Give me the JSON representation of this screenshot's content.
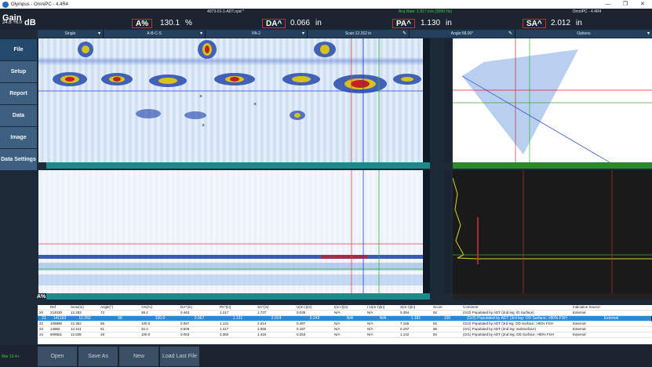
{
  "window": {
    "title": "Olympus - OmniPC - 4.4R4",
    "controls": [
      "—",
      "❐",
      "✕"
    ]
  },
  "header": {
    "file": "4073-01-1-ADT.opd *",
    "acq": "Acq Rate: 1.817 in/s (2000 Hz)",
    "version": "OmniPC - 4.4R4",
    "gain": {
      "label": "Gain",
      "value": "24.6 +6.0",
      "unit": "dB"
    },
    "readouts": [
      {
        "key": "A%",
        "value": "130.1",
        "unit": "%"
      },
      {
        "key": "DA^",
        "value": "0.066",
        "unit": "in"
      },
      {
        "key": "PA^",
        "value": "1.130",
        "unit": "in"
      },
      {
        "key": "SA^",
        "value": "2.012",
        "unit": "in"
      }
    ]
  },
  "selectors": [
    {
      "label": "Single"
    },
    {
      "label": "A-B-C-S"
    },
    {
      "label": "PA-2"
    },
    {
      "label": "Scan:12.262 in"
    },
    {
      "label": "Angle:58.00°"
    },
    {
      "label": "Options"
    }
  ],
  "sidebar": [
    "File",
    "Setup",
    "Report",
    "Data",
    "Image",
    "Data Settings"
  ],
  "views": {
    "bscan": "B-scan view",
    "cscan": "C-scan view",
    "sscan": "Sector scan",
    "ascan": "A-scan"
  },
  "table": {
    "columns": [
      "",
      "Ref",
      "Scan(in)",
      "Angle(°)",
      "A%(%)",
      "DA^(in)",
      "PA^(in)",
      "SA^(in)",
      "U(m-r)(in)",
      "I(m-r)(in)",
      "I-U(m-r)(in)",
      "S(m-r)(in)",
      "Score",
      "Comment",
      "Indication Source"
    ],
    "rows": [
      [
        "20",
        "214030",
        "12.283",
        "72",
        "39.2",
        "0.463",
        "1.217",
        "1.737",
        "0.035",
        "N/A",
        "N/A",
        "0.394",
        "82",
        "(Gr2) Populated by ADT (2nd leg: ID Surface)",
        "External"
      ],
      [
        "21",
        "141163",
        "12.262",
        "58",
        "100.0",
        "0.067",
        "1.131",
        "2.014",
        "0.243",
        "N/A",
        "N/A",
        "1.181",
        "100",
        "(Gr3) Populated by ADT (3rd leg: OD Surface; >80% FSH",
        "External"
      ],
      [
        "22",
        "109890",
        "12.362",
        "56",
        "100.0",
        "0.067",
        "1.131",
        "2.014",
        "0.497",
        "N/A",
        "N/A",
        "7.165",
        "82",
        "(Gr2) Populated by ADT (3rd leg: OD Surface; >80% FSH",
        "External"
      ],
      [
        "23",
        "14982",
        "12.441",
        "61",
        "32.2",
        "0.609",
        "1.317",
        "2.055",
        "0.197",
        "N/A",
        "N/A",
        "0.197",
        "96",
        "(Gr1) Populated by ADT (2nd leg: SubSurface)",
        "External"
      ],
      [
        "24",
        "609551",
        "12.835",
        "48",
        "100.0",
        "0.053",
        "0.360",
        "1.415",
        "0.253",
        "N/A",
        "N/A",
        "1.142",
        "82",
        "(Gr1) Populated by ADT (2nd leg: OD Surface; >80% FSH",
        "External"
      ]
    ],
    "selected_row": 1
  },
  "footer": {
    "buttons": [
      "Open",
      "Save As",
      "New",
      "Load Last File"
    ],
    "status": "Mar 10 4+"
  },
  "a_label": "A%"
}
